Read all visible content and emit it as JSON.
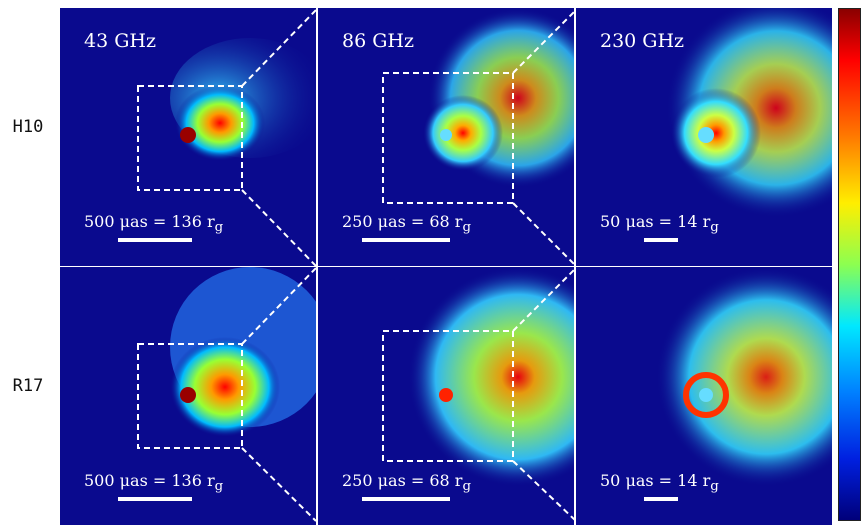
{
  "rows": [
    {
      "label": "H10"
    },
    {
      "label": "R17"
    }
  ],
  "panels": [
    {
      "freq": "43 GHz",
      "scale": "500 μas = 136 r",
      "scale_sub": "g"
    },
    {
      "freq": "86 GHz",
      "scale": "250 μas = 68 r",
      "scale_sub": "g"
    },
    {
      "freq": "230 GHz",
      "scale": "50 μas = 14 r",
      "scale_sub": "g"
    }
  ],
  "colors": {
    "background": "#0a0a8e",
    "colorbar": [
      "#8a0000",
      "#ff0000",
      "#ff7a00",
      "#ffee00",
      "#8cff50",
      "#00e8ff",
      "#0080ff",
      "#0020e0",
      "#00007a"
    ]
  }
}
